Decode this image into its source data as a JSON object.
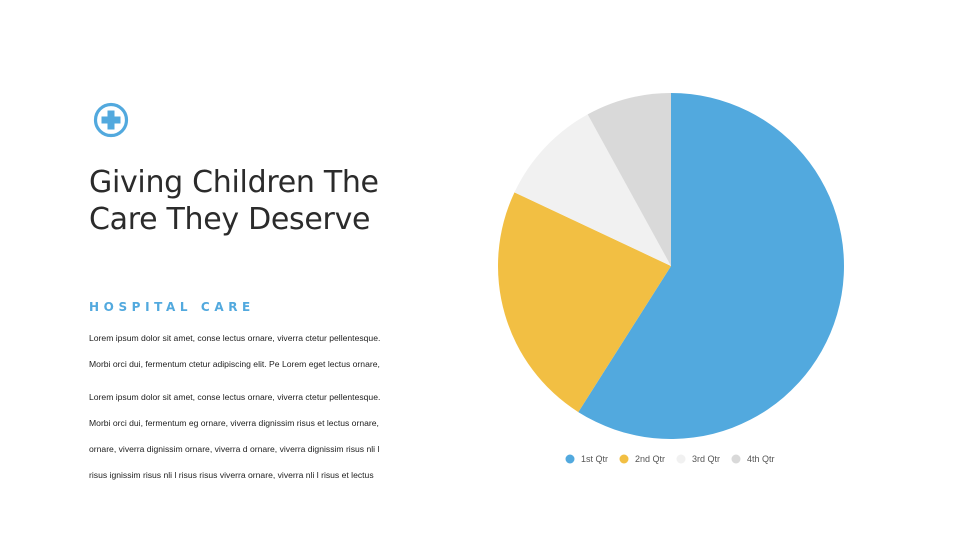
{
  "heading": {
    "line1": "Giving Children The",
    "line2": "Care They Deserve"
  },
  "subtitle": "HOSPITAL CARE",
  "paragraph1": [
    "Lorem ipsum dolor sit amet, conse lectus ornare, viverra ctetur pellentesque.",
    "Morbi orci dui, fermentum ctetur adipiscing elit. Pe Lorem eget lectus ornare,"
  ],
  "paragraph2": [
    "Lorem ipsum dolor sit amet, conse lectus ornare, viverra ctetur pellentesque.",
    "Morbi orci dui, fermentum eg ornare, viverra dignissim risus et lectus ornare,",
    "ornare, viverra dignissim ornare, viverra d ornare, viverra dignissim risus nli l",
    "risus ignissim risus nli l risus risus viverra ornare, viverra nli l risus et lectus"
  ],
  "colors": {
    "accent": "#52a9de",
    "logo": "#52a9de"
  },
  "logo_icon": "medical-cross-icon",
  "chart_data": {
    "type": "pie",
    "title": "",
    "categories": [
      "1st Qtr",
      "2nd Qtr",
      "3rd Qtr",
      "4th Qtr"
    ],
    "values": [
      59,
      23,
      10,
      8
    ],
    "colors": [
      "#52a9de",
      "#f2bf43",
      "#f1f1f1",
      "#d9d9d9"
    ],
    "start_angle_deg": 0,
    "direction": "clockwise",
    "legend": {
      "position": "bottom",
      "entries": [
        "1st Qtr",
        "2nd Qtr",
        "3rd Qtr",
        "4th Qtr"
      ]
    }
  }
}
